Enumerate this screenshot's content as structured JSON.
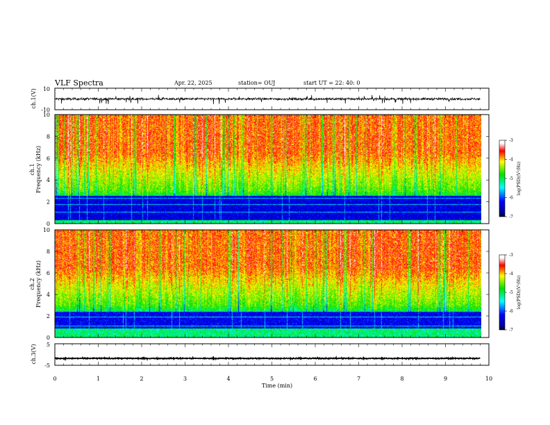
{
  "header": {
    "title": "VLF Spectra",
    "date": "Apr. 22, 2025",
    "station": "station= OUJ",
    "start": "start  UT =   22: 40: 0"
  },
  "chart_data": [
    {
      "type": "line",
      "ylabel": "ch.1(V)",
      "ylim": [
        -10,
        10
      ],
      "yticks": [
        "10",
        "-10"
      ],
      "x_range": [
        0,
        9.8
      ],
      "series_baseline": 0,
      "spread": 1.1,
      "spike_min": -5,
      "spike_max": 4
    },
    {
      "type": "heatmap",
      "ylabel_line1": "ch.1",
      "ylabel_line2": "Frequency (kHz)",
      "ylim": [
        0,
        10
      ],
      "yticks": [
        "0",
        "2",
        "4",
        "6",
        "8",
        "10"
      ],
      "x_range": [
        0,
        9.8
      ],
      "colorbar": {
        "label": "log(PSD)(V²/Hz)",
        "ticks": [
          "-3",
          "-4",
          "-5",
          "-6",
          "-7"
        ],
        "range": [
          -7,
          -3
        ]
      },
      "band": {
        "low_khz": 0.3,
        "high_khz": 2.5,
        "level": -6.4
      }
    },
    {
      "type": "heatmap",
      "ylabel_line1": "ch.2",
      "ylabel_line2": "Frequency (kHz)",
      "ylim": [
        0,
        10
      ],
      "yticks": [
        "0",
        "2",
        "4",
        "6",
        "8",
        "10"
      ],
      "x_range": [
        0,
        9.8
      ],
      "colorbar": {
        "label": "log(PSD)(V²/Hz)",
        "ticks": [
          "-3",
          "-4",
          "-5",
          "-6",
          "-7"
        ],
        "range": [
          -7,
          -3
        ]
      },
      "band": {
        "low_khz": 0.8,
        "high_khz": 2.4,
        "level": -6.3
      }
    },
    {
      "type": "line",
      "ylabel": "ch.3(V)",
      "ylim": [
        -5,
        5
      ],
      "yticks": [
        "5",
        "-5"
      ],
      "x_range": [
        0,
        9.8
      ],
      "series_baseline": -1.8,
      "spread": 0.25
    }
  ],
  "xaxis": {
    "label": "Time (min)",
    "ticks": [
      "0",
      "1",
      "2",
      "3",
      "4",
      "5",
      "6",
      "7",
      "8",
      "9",
      "10"
    ],
    "range": [
      0,
      10
    ]
  }
}
